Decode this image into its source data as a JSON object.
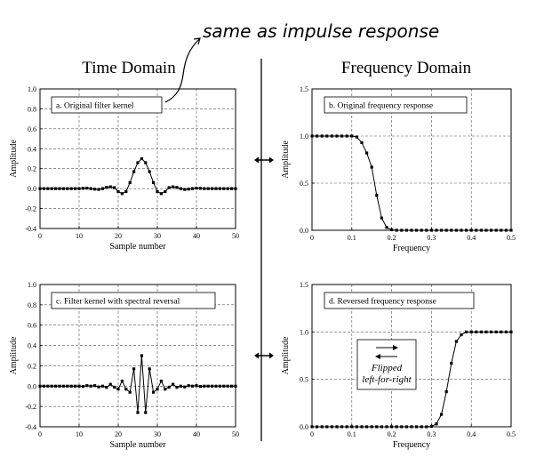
{
  "annotation": "same as impulse response",
  "headers": {
    "time": "Time Domain",
    "frequency": "Frequency Domain"
  },
  "center_note": {
    "line1": "Flipped",
    "line2": "left-for-right"
  },
  "chart_data": [
    {
      "id": "a",
      "type": "line",
      "label": "a.  Original filter kernel",
      "xlabel": "Sample number",
      "ylabel": "Amplitude",
      "xlim": [
        0,
        50
      ],
      "ylim": [
        -0.4,
        1.0
      ],
      "xticks": [
        0,
        10,
        20,
        30,
        40,
        50
      ],
      "yticks": [
        -0.4,
        -0.2,
        0.0,
        0.2,
        0.4,
        0.6,
        0.8,
        1.0
      ],
      "ytick_decimals": 1,
      "grid": true,
      "x": [
        0,
        1,
        2,
        3,
        4,
        5,
        6,
        7,
        8,
        9,
        10,
        11,
        12,
        13,
        14,
        15,
        16,
        17,
        18,
        19,
        20,
        21,
        22,
        23,
        24,
        25,
        26,
        27,
        28,
        29,
        30,
        31,
        32,
        33,
        34,
        35,
        36,
        37,
        38,
        39,
        40,
        41,
        42,
        43,
        44,
        45,
        46,
        47,
        48,
        49,
        50
      ],
      "y": [
        0,
        0,
        0,
        0,
        0,
        0,
        0,
        0,
        0,
        0,
        0,
        0.003,
        0.005,
        0,
        -0.005,
        -0.008,
        0,
        0.012,
        0.018,
        0.01,
        -0.03,
        -0.05,
        -0.03,
        0.06,
        0.17,
        0.26,
        0.3,
        0.26,
        0.17,
        0.06,
        -0.03,
        -0.05,
        -0.03,
        0.01,
        0.018,
        0.012,
        0,
        -0.008,
        -0.005,
        0,
        0.005,
        0.003,
        0,
        0,
        0,
        0,
        0,
        0,
        0,
        0,
        0
      ]
    },
    {
      "id": "b",
      "type": "line",
      "label": "b.  Original frequency response",
      "xlabel": "Frequency",
      "ylabel": "Amplitude",
      "xlim": [
        0,
        0.5
      ],
      "ylim": [
        0,
        1.5
      ],
      "xticks": [
        0,
        0.1,
        0.2,
        0.3,
        0.4,
        0.5
      ],
      "yticks": [
        0,
        0.5,
        1.0,
        1.5
      ],
      "ytick_decimals": 1,
      "grid": true,
      "x": [
        0,
        0.0125,
        0.025,
        0.0375,
        0.05,
        0.0625,
        0.075,
        0.0875,
        0.1,
        0.1125,
        0.125,
        0.1375,
        0.15,
        0.1625,
        0.175,
        0.1875,
        0.2,
        0.2125,
        0.225,
        0.2375,
        0.25,
        0.2625,
        0.275,
        0.2875,
        0.3,
        0.3125,
        0.325,
        0.3375,
        0.35,
        0.3625,
        0.375,
        0.3875,
        0.4,
        0.4125,
        0.425,
        0.4375,
        0.45,
        0.4625,
        0.475,
        0.4875,
        0.5
      ],
      "y": [
        1,
        1,
        1,
        1,
        1,
        1,
        1,
        1,
        1,
        0.99,
        0.93,
        0.82,
        0.67,
        0.37,
        0.13,
        0.03,
        0.005,
        0,
        0,
        0,
        0,
        0,
        0,
        0,
        0,
        0,
        0,
        0,
        0,
        0,
        0,
        0,
        0,
        0,
        0,
        0,
        0,
        0,
        0,
        0,
        0
      ]
    },
    {
      "id": "c",
      "type": "line",
      "label": "c.  Filter kernel with spectral reversal",
      "xlabel": "Sample number",
      "ylabel": "Amplitude",
      "xlim": [
        0,
        50
      ],
      "ylim": [
        -0.4,
        1.0
      ],
      "xticks": [
        0,
        10,
        20,
        30,
        40,
        50
      ],
      "yticks": [
        -0.4,
        -0.2,
        0.0,
        0.2,
        0.4,
        0.6,
        0.8,
        1.0
      ],
      "ytick_decimals": 1,
      "grid": true,
      "x": [
        0,
        1,
        2,
        3,
        4,
        5,
        6,
        7,
        8,
        9,
        10,
        11,
        12,
        13,
        14,
        15,
        16,
        17,
        18,
        19,
        20,
        21,
        22,
        23,
        24,
        25,
        26,
        27,
        28,
        29,
        30,
        31,
        32,
        33,
        34,
        35,
        36,
        37,
        38,
        39,
        40,
        41,
        42,
        43,
        44,
        45,
        46,
        47,
        48,
        49,
        50
      ],
      "y": [
        0,
        0,
        0,
        0,
        0,
        0,
        0,
        0,
        0,
        0,
        0,
        -0.003,
        0.005,
        0,
        0.005,
        -0.008,
        0,
        -0.012,
        0.018,
        -0.01,
        -0.03,
        0.05,
        -0.03,
        -0.06,
        0.17,
        -0.26,
        0.3,
        -0.26,
        0.17,
        -0.06,
        -0.03,
        0.05,
        -0.03,
        -0.01,
        0.018,
        -0.012,
        0,
        -0.008,
        0.005,
        0,
        0.005,
        -0.003,
        0,
        0,
        0,
        0,
        0,
        0,
        0,
        0,
        0
      ]
    },
    {
      "id": "d",
      "type": "line",
      "label": "d.  Reversed frequency response",
      "xlabel": "Frequency",
      "ylabel": "Amplitude",
      "xlim": [
        0,
        0.5
      ],
      "ylim": [
        0,
        1.5
      ],
      "xticks": [
        0,
        0.1,
        0.2,
        0.3,
        0.4,
        0.5
      ],
      "yticks": [
        0,
        0.5,
        1.0,
        1.5
      ],
      "ytick_decimals": 1,
      "grid": true,
      "x": [
        0,
        0.0125,
        0.025,
        0.0375,
        0.05,
        0.0625,
        0.075,
        0.0875,
        0.1,
        0.1125,
        0.125,
        0.1375,
        0.15,
        0.1625,
        0.175,
        0.1875,
        0.2,
        0.2125,
        0.225,
        0.2375,
        0.25,
        0.2625,
        0.275,
        0.2875,
        0.3,
        0.3125,
        0.325,
        0.3375,
        0.35,
        0.3625,
        0.375,
        0.3875,
        0.4,
        0.4125,
        0.425,
        0.4375,
        0.45,
        0.4625,
        0.475,
        0.4875,
        0.5
      ],
      "y": [
        0,
        0,
        0,
        0,
        0,
        0,
        0,
        0,
        0,
        0,
        0,
        0,
        0,
        0,
        0,
        0,
        0,
        0,
        0,
        0,
        0,
        0,
        0,
        0,
        0.005,
        0.03,
        0.13,
        0.37,
        0.67,
        0.9,
        0.97,
        1,
        1,
        1,
        1,
        1,
        1,
        1,
        1,
        1,
        1
      ]
    }
  ]
}
